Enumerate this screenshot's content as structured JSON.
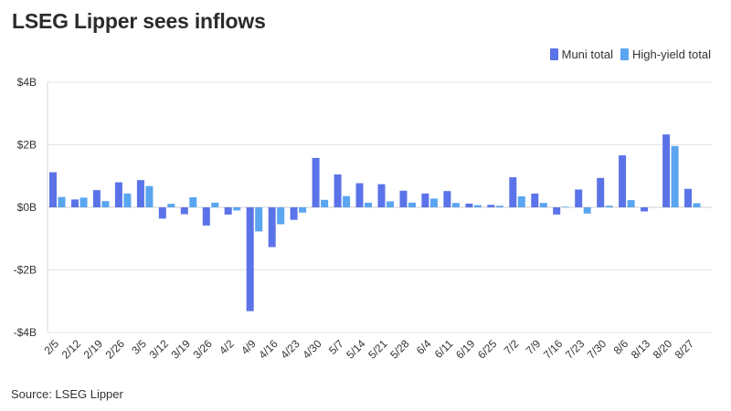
{
  "chart_data": {
    "type": "bar",
    "title": "LSEG Lipper sees inflows",
    "source": "Source: LSEG Lipper",
    "categories": [
      "2/5",
      "",
      "2/12",
      "",
      "2/19",
      "",
      "2/26",
      "",
      "3/5",
      "",
      "3/12",
      "",
      "3/19",
      "",
      "3/26",
      "",
      "4/2",
      "",
      "4/9",
      "",
      "4/16",
      "",
      "4/23",
      "",
      "4/30",
      "",
      "5/7",
      "",
      "5/14",
      "",
      "5/21",
      "",
      "5/28",
      "",
      "6/4",
      "",
      "6/11",
      "",
      "6/19",
      "",
      "6/25",
      "",
      "7/2",
      "",
      "7/9",
      "",
      "7/16",
      "",
      "7/23",
      "",
      "7/30",
      "",
      "8/6",
      "",
      "8/13",
      "",
      "8/20",
      "",
      "8/27"
    ],
    "dates": [
      "2/5",
      "2/12",
      "2/19",
      "2/26",
      "3/5",
      "3/12",
      "3/19",
      "3/26",
      "4/2",
      "4/9",
      "4/16",
      "4/23",
      "4/30",
      "5/7",
      "5/14",
      "5/21",
      "5/28",
      "6/4",
      "6/11",
      "6/19",
      "6/25",
      "7/2",
      "7/9",
      "7/16",
      "7/23",
      "7/30",
      "8/6",
      "8/13",
      "8/20",
      "8/27"
    ],
    "series": [
      {
        "name": "Muni total",
        "color": "#5b73e8",
        "values": [
          1.12,
          0.25,
          0.55,
          0.8,
          0.87,
          -0.36,
          -0.22,
          -0.58,
          -0.23,
          -3.32,
          -1.27,
          -0.4,
          1.58,
          1.05,
          0.77,
          0.74,
          0.53,
          0.44,
          0.52,
          0.12,
          0.08,
          0.96,
          0.44,
          -0.23,
          0.57,
          0.94,
          1.66,
          -0.13,
          2.33,
          0.59
        ]
      },
      {
        "name": "High-yield total",
        "color": "#5aa5f0",
        "values": [
          0.33,
          0.31,
          0.2,
          0.44,
          0.68,
          0.11,
          0.32,
          0.15,
          -0.1,
          -0.77,
          -0.54,
          -0.17,
          0.24,
          0.36,
          0.15,
          0.19,
          0.15,
          0.28,
          0.14,
          0.07,
          0.05,
          0.35,
          0.14,
          0.02,
          -0.2,
          0.05,
          0.23,
          0.0,
          1.96,
          0.13
        ]
      }
    ],
    "y_unit": "$B",
    "ylim": [
      -4,
      4
    ],
    "yticks": [
      4,
      2,
      0,
      -2,
      -4
    ],
    "ytick_labels": [
      "$4B",
      "$2B",
      "$0B",
      "-$2B",
      "-$4B"
    ],
    "grid": true,
    "legend_position": "top-right"
  }
}
